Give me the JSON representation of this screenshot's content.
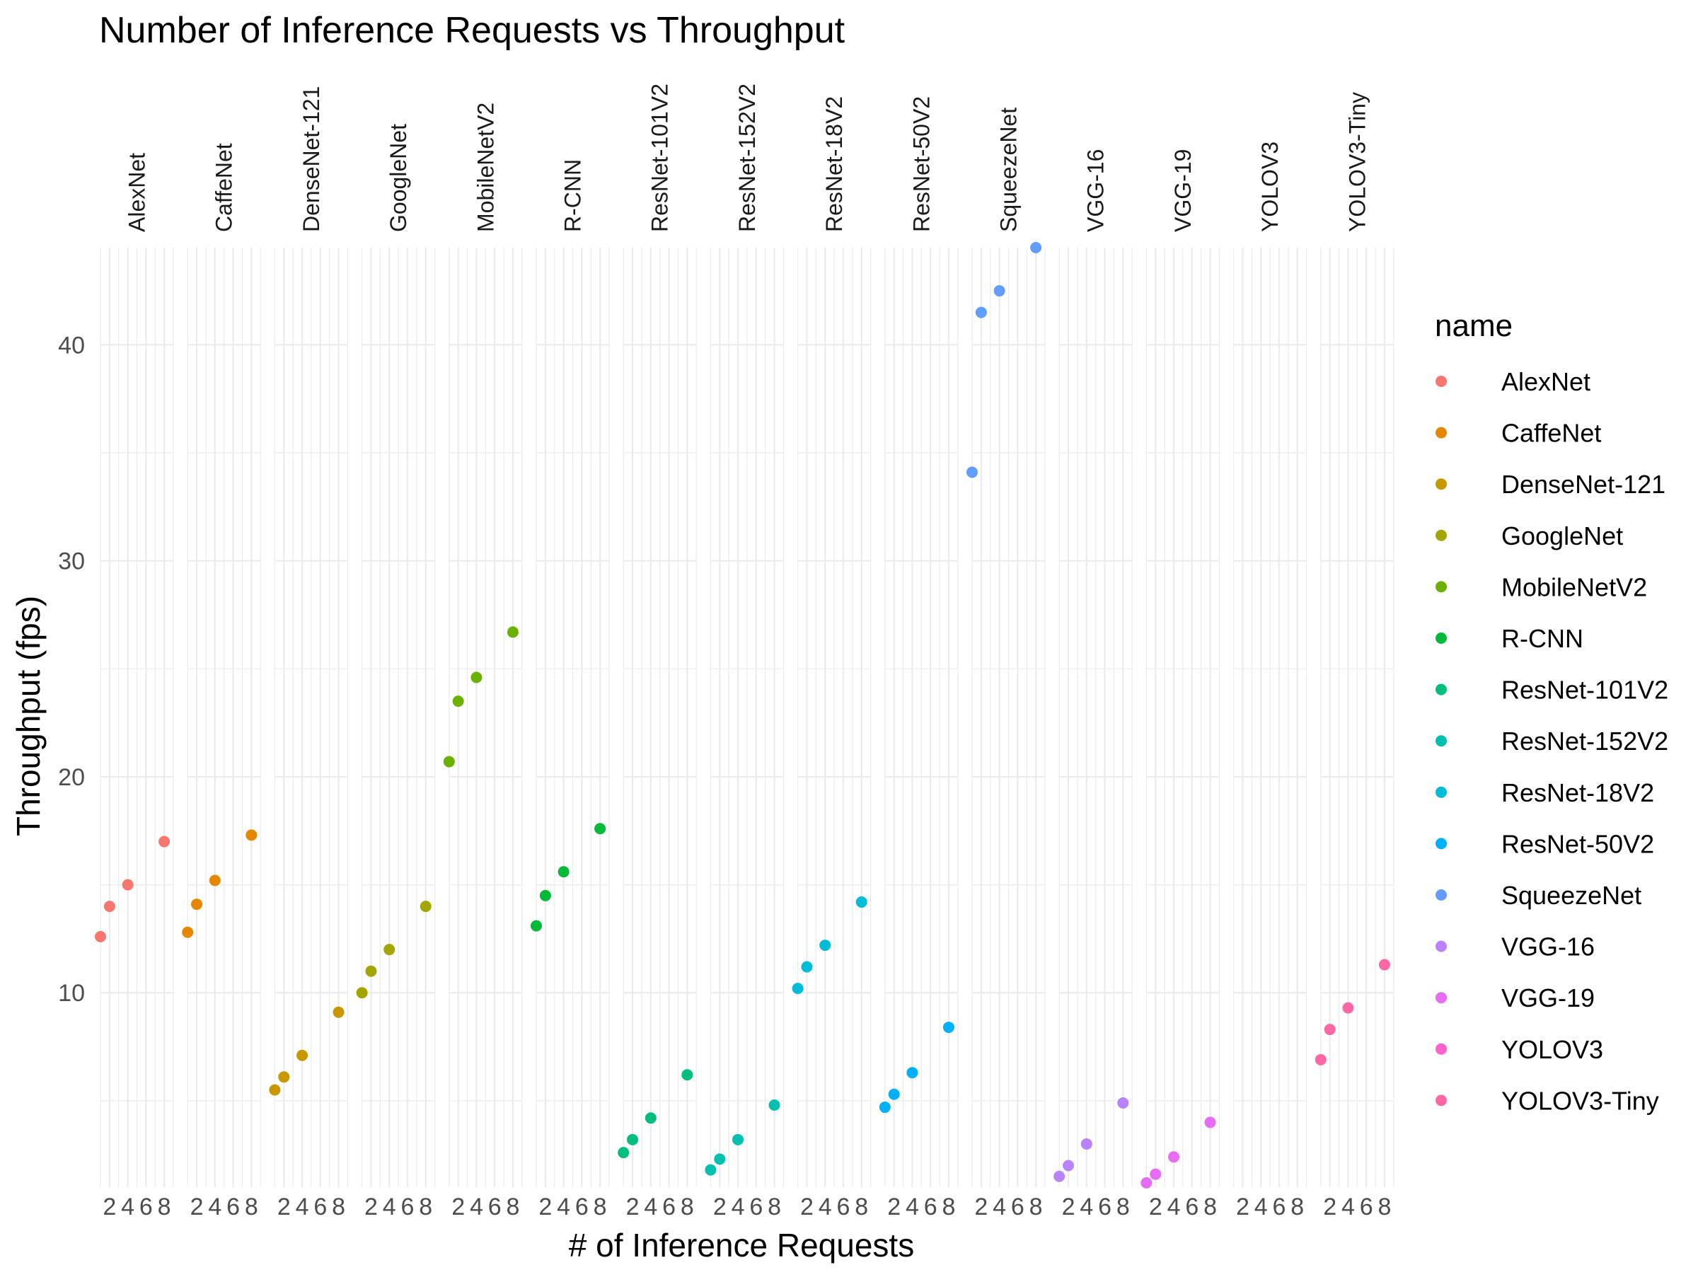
{
  "chart_data": {
    "type": "scatter",
    "title": "Number of Inference Requests vs Throughput",
    "xlabel": "# of Inference Requests",
    "ylabel": "Throughput (fps)",
    "legend_title": "name",
    "legend_placement": "right",
    "faceted_by": "name",
    "x_ticks": [
      "2",
      "4",
      "6",
      "8"
    ],
    "xlim": [
      1,
      9
    ],
    "y_ticks": [
      "10",
      "20",
      "30",
      "40"
    ],
    "ylim": [
      1,
      44.5
    ],
    "grid": true,
    "series": [
      {
        "name": "AlexNet",
        "color": "#F8766D",
        "x": [
          1,
          2,
          4,
          8
        ],
        "y": [
          12.6,
          14.0,
          15.0,
          17.0
        ]
      },
      {
        "name": "CaffeNet",
        "color": "#E58700",
        "x": [
          1,
          2,
          4,
          8
        ],
        "y": [
          12.8,
          14.1,
          15.2,
          17.3
        ]
      },
      {
        "name": "DenseNet-121",
        "color": "#C99800",
        "x": [
          1,
          2,
          4,
          8
        ],
        "y": [
          5.5,
          6.1,
          7.1,
          9.1
        ]
      },
      {
        "name": "GoogleNet",
        "color": "#A3A500",
        "x": [
          1,
          2,
          4,
          8
        ],
        "y": [
          10.0,
          11.0,
          12.0,
          14.0
        ]
      },
      {
        "name": "MobileNetV2",
        "color": "#6BB100",
        "x": [
          1,
          2,
          4,
          8
        ],
        "y": [
          20.7,
          23.5,
          24.6,
          26.7
        ]
      },
      {
        "name": "R-CNN",
        "color": "#00BA38",
        "x": [
          1,
          2,
          4,
          8
        ],
        "y": [
          13.1,
          14.5,
          15.6,
          17.6
        ]
      },
      {
        "name": "ResNet-101V2",
        "color": "#00BF7D",
        "x": [
          1,
          2,
          4,
          8
        ],
        "y": [
          2.6,
          3.2,
          4.2,
          6.2
        ]
      },
      {
        "name": "ResNet-152V2",
        "color": "#00C0AF",
        "x": [
          1,
          2,
          4,
          8
        ],
        "y": [
          1.8,
          2.3,
          3.2,
          4.8
        ]
      },
      {
        "name": "ResNet-18V2",
        "color": "#00BCD8",
        "x": [
          1,
          2,
          4,
          8
        ],
        "y": [
          10.2,
          11.2,
          12.2,
          14.2
        ]
      },
      {
        "name": "ResNet-50V2",
        "color": "#00B0F6",
        "x": [
          1,
          2,
          4,
          8
        ],
        "y": [
          4.7,
          5.3,
          6.3,
          8.4
        ]
      },
      {
        "name": "SqueezeNet",
        "color": "#619CFF",
        "x": [
          1,
          2,
          4,
          8
        ],
        "y": [
          34.1,
          41.5,
          42.5,
          44.5
        ]
      },
      {
        "name": "VGG-16",
        "color": "#B983FF",
        "x": [
          1,
          2,
          4,
          8
        ],
        "y": [
          1.5,
          2.0,
          3.0,
          4.9
        ]
      },
      {
        "name": "VGG-19",
        "color": "#E76BF3",
        "x": [
          1,
          2,
          4,
          8
        ],
        "y": [
          1.2,
          1.6,
          2.4,
          4.0
        ]
      },
      {
        "name": "YOLOV3",
        "color": "#FD61D1",
        "x": [],
        "y": []
      },
      {
        "name": "YOLOV3-Tiny",
        "color": "#FF67A4",
        "x": [
          1,
          2,
          4,
          8
        ],
        "y": [
          6.9,
          8.3,
          9.3,
          11.3
        ]
      }
    ]
  }
}
